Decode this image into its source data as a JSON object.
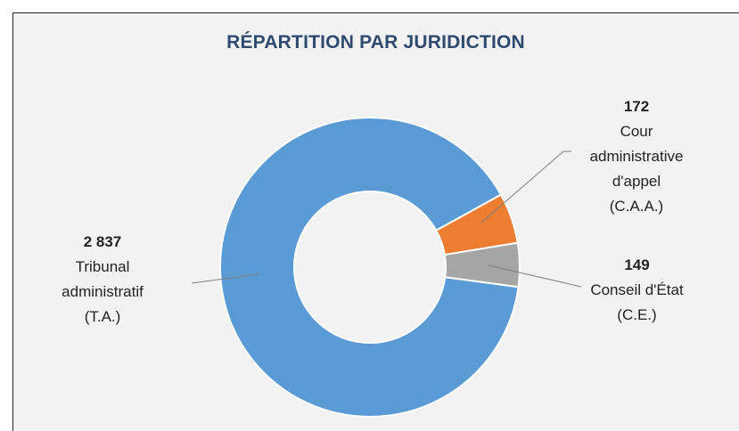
{
  "chart_data": {
    "type": "donut",
    "title": "RÉPARTITION PAR JURIDICTION",
    "categories": [
      "Tribunal administratif (T.A.)",
      "Cour administrative d'appel (C.A.A.)",
      "Conseil d'État (C.E.)"
    ],
    "values": [
      2837,
      172,
      149
    ],
    "value_labels": [
      "2 837",
      "172",
      "149"
    ],
    "colors": [
      "#5b9bd5",
      "#ed7d31",
      "#a5a5a5"
    ]
  }
}
